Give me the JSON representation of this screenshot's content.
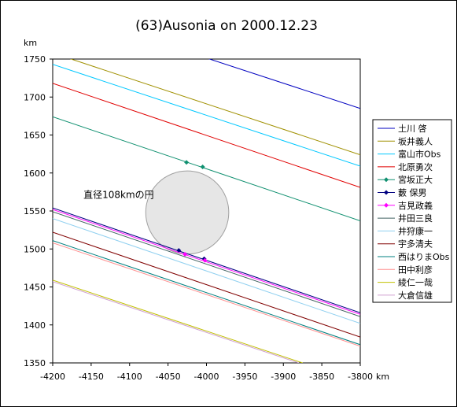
{
  "chart_data": {
    "type": "line",
    "title": "(63)Ausonia on 2000.12.23",
    "xlabel": "km",
    "ylabel": "km",
    "xlim": [
      -4200,
      -3800
    ],
    "ylim": [
      1350,
      1750
    ],
    "xticks": [
      -4200,
      -4150,
      -4100,
      -4050,
      -4000,
      -3950,
      -3900,
      -3850,
      -3800
    ],
    "yticks": [
      1350,
      1400,
      1450,
      1500,
      1550,
      1600,
      1650,
      1700,
      1750
    ],
    "grid": false,
    "legend_position": "right",
    "annotation": {
      "text": "直径108kmの円",
      "circle_center": [
        -4025,
        1548
      ],
      "circle_diameter": 108
    },
    "series": [
      {
        "name": "土川 啓",
        "color": "#0000c0",
        "line": [
          [
            -4005,
            1753
          ],
          [
            -3800,
            1685
          ]
        ],
        "points": []
      },
      {
        "name": "坂井義人",
        "color": "#a09000",
        "line": [
          [
            -4185,
            1753
          ],
          [
            -3800,
            1624
          ]
        ],
        "points": []
      },
      {
        "name": "富山市Obs",
        "color": "#00c8ff",
        "line": [
          [
            -4200,
            1743
          ],
          [
            -3800,
            1609
          ]
        ],
        "points": []
      },
      {
        "name": "北原勇次",
        "color": "#e00000",
        "line": [
          [
            -4200,
            1718
          ],
          [
            -3800,
            1581
          ]
        ],
        "points": []
      },
      {
        "name": "宮坂正大",
        "color": "#109070",
        "line": [
          [
            -4200,
            1674
          ],
          [
            -3800,
            1537
          ]
        ],
        "points": [
          [
            -4026,
            1614
          ],
          [
            -4005,
            1608
          ]
        ]
      },
      {
        "name": "藪 保男",
        "color": "#000080",
        "line": [
          [
            -4200,
            1554
          ],
          [
            -3800,
            1416
          ]
        ],
        "points": [
          [
            -4036,
            1498
          ],
          [
            -4003,
            1487
          ]
        ]
      },
      {
        "name": "吉見政義",
        "color": "#ff00ff",
        "line": [
          [
            -4200,
            1552
          ],
          [
            -3800,
            1414
          ]
        ],
        "points": [
          [
            -4028,
            1493
          ],
          [
            -4002,
            1485
          ]
        ]
      },
      {
        "name": "井田三良",
        "color": "#406060",
        "line": [
          [
            -4200,
            1549
          ],
          [
            -3800,
            1411
          ]
        ],
        "points": []
      },
      {
        "name": "井狩康一",
        "color": "#90d0f0",
        "line": [
          [
            -4200,
            1540
          ],
          [
            -3800,
            1402
          ]
        ],
        "points": []
      },
      {
        "name": "宇多清夫",
        "color": "#800000",
        "line": [
          [
            -4200,
            1522
          ],
          [
            -3800,
            1384
          ]
        ],
        "points": []
      },
      {
        "name": "西はりまObs",
        "color": "#008080",
        "line": [
          [
            -4200,
            1511
          ],
          [
            -3800,
            1374
          ]
        ],
        "points": []
      },
      {
        "name": "田中利彦",
        "color": "#ff9090",
        "line": [
          [
            -4200,
            1508
          ],
          [
            -3800,
            1372
          ]
        ],
        "points": []
      },
      {
        "name": "綾仁一哉",
        "color": "#c0c000",
        "line": [
          [
            -4200,
            1459
          ],
          [
            -3875,
            1350
          ]
        ],
        "points": []
      },
      {
        "name": "大倉信雄",
        "color": "#d0a0d0",
        "line": [
          [
            -4200,
            1457
          ],
          [
            -3880,
            1350
          ]
        ],
        "points": []
      }
    ]
  }
}
